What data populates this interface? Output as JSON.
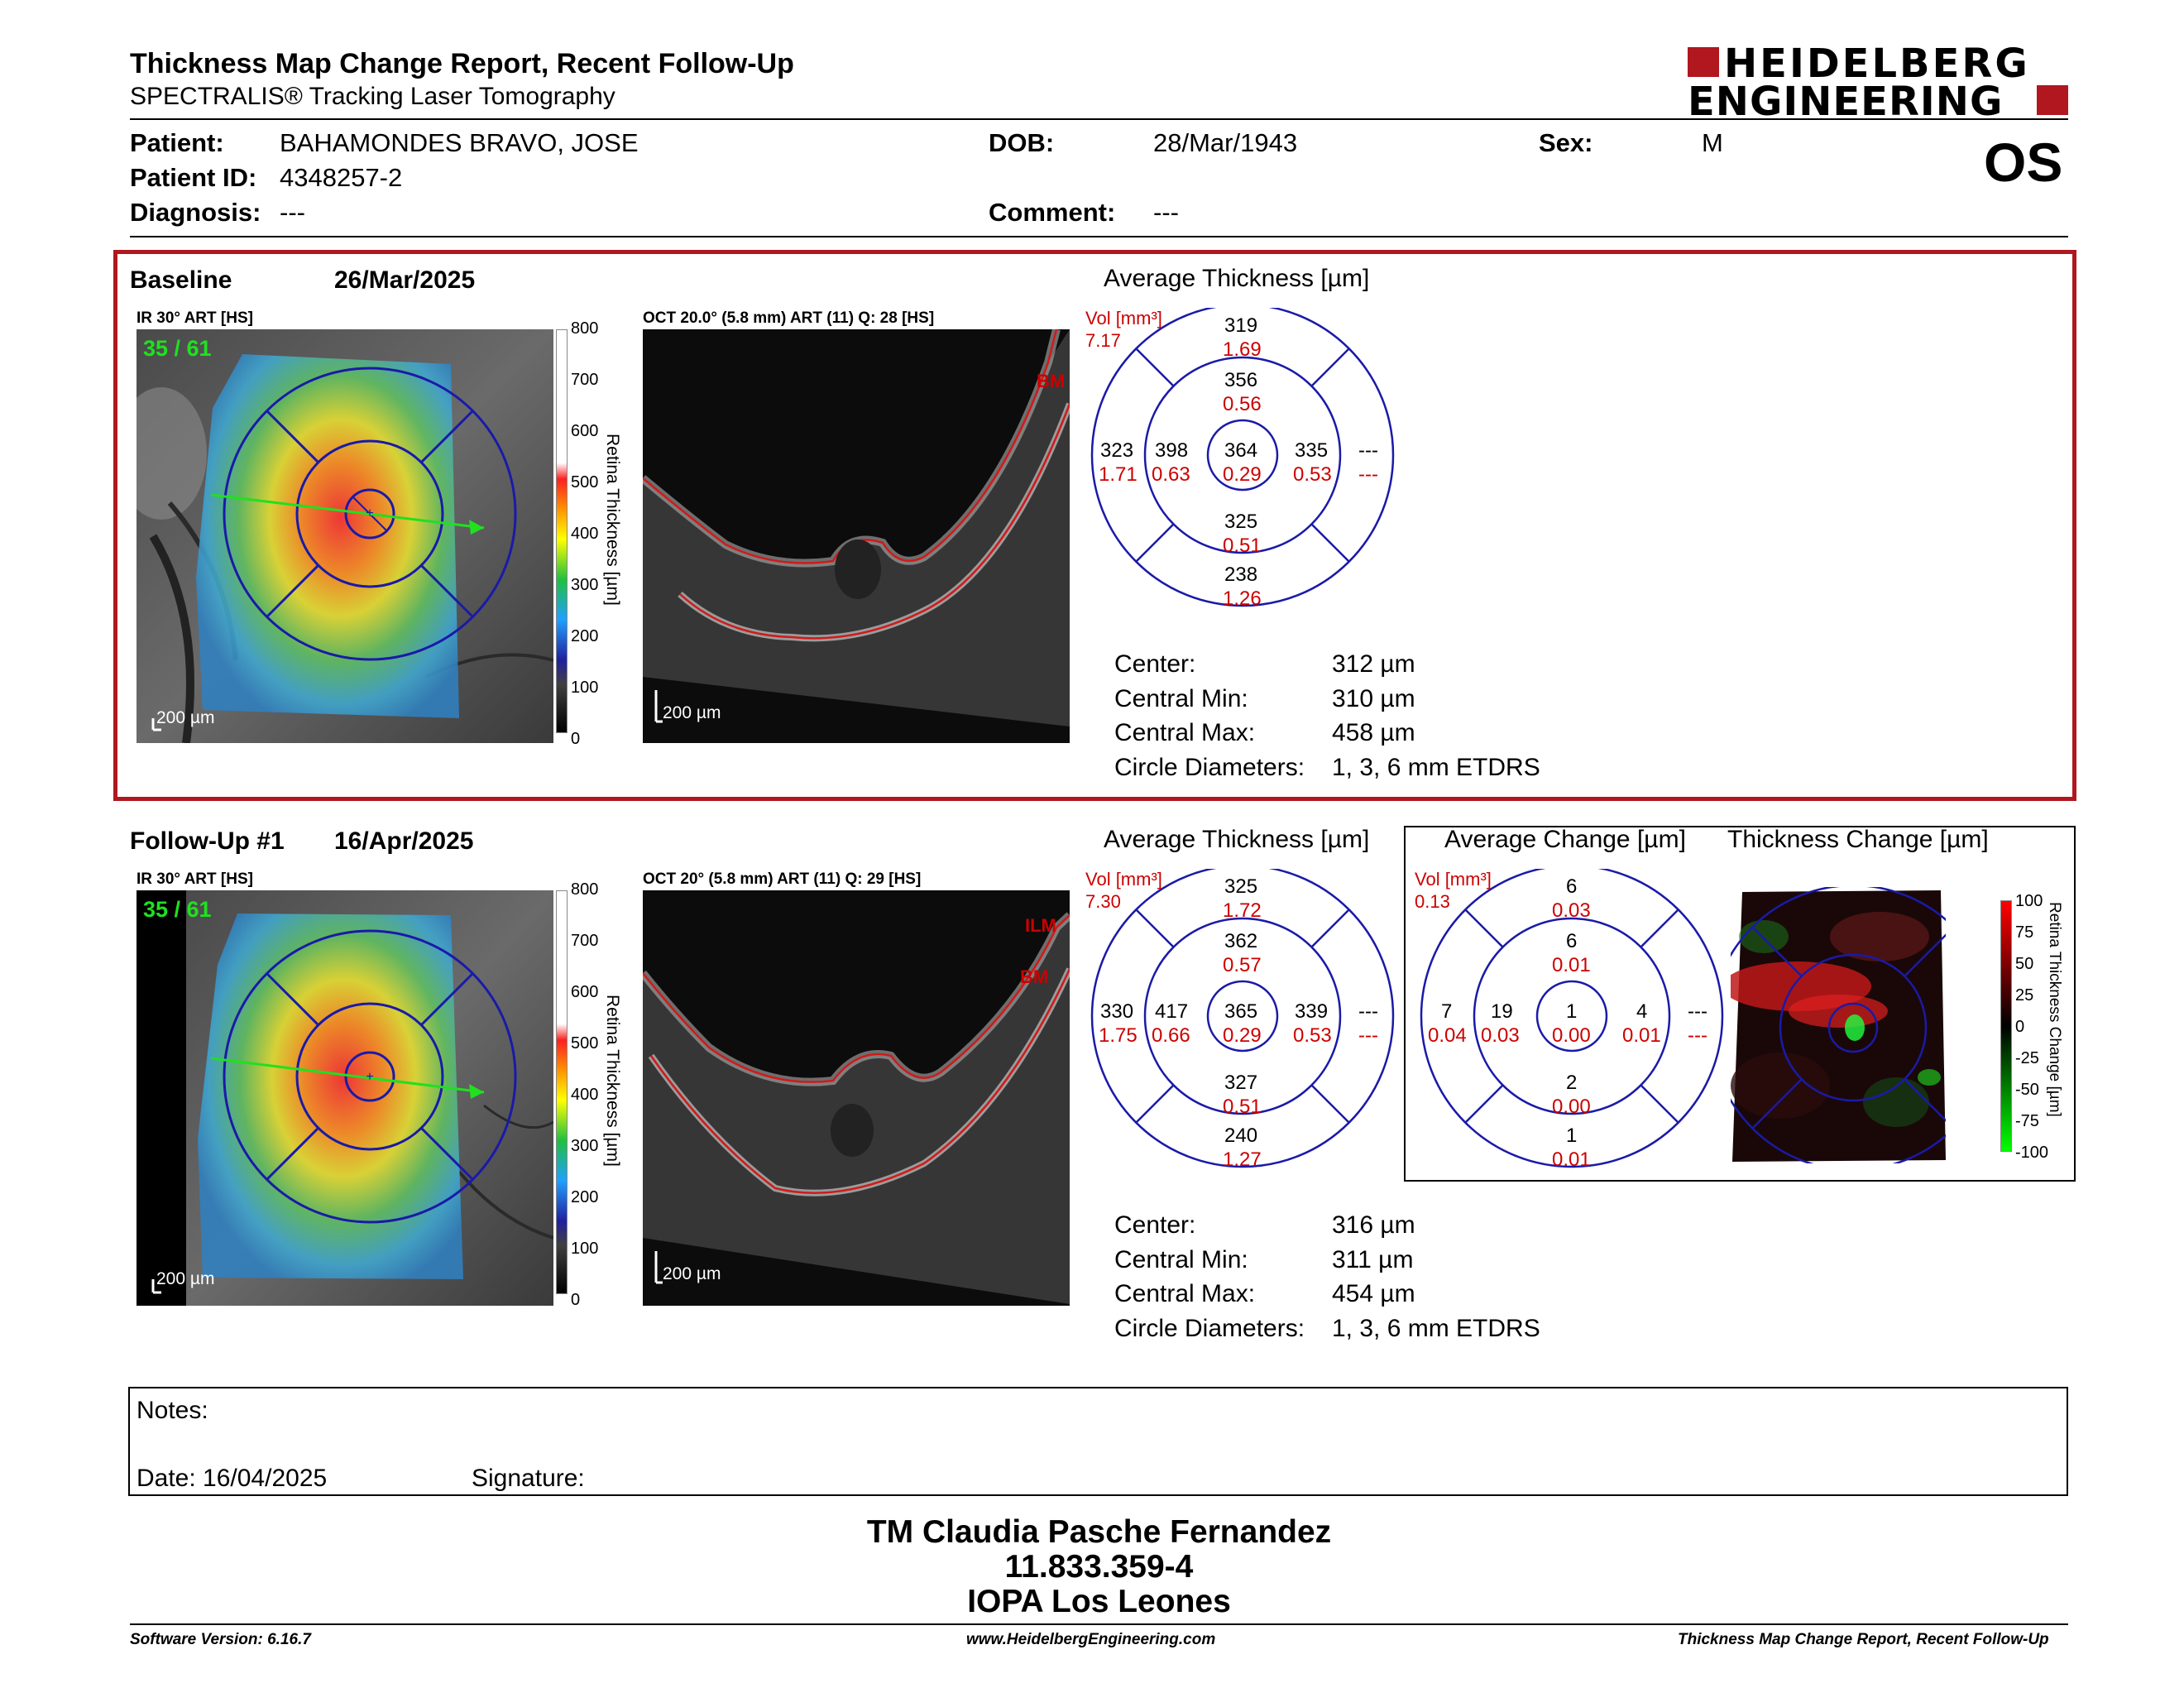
{
  "header": {
    "title": "Thickness Map Change Report, Recent Follow-Up",
    "subtitle": "SPECTRALIS® Tracking Laser Tomography",
    "logo_line1": "HEIDELBERG",
    "logo_line2": "ENGINEERING",
    "eye": "OS"
  },
  "patient": {
    "patient_label": "Patient:",
    "patient_value": "BAHAMONDES BRAVO, JOSE",
    "dob_label": "DOB:",
    "dob_value": "28/Mar/1943",
    "sex_label": "Sex:",
    "sex_value": "M",
    "id_label": "Patient ID:",
    "id_value": "4348257-2",
    "diagnosis_label": "Diagnosis:",
    "diagnosis_value": "---",
    "comment_label": "Comment:",
    "comment_value": "---"
  },
  "baseline": {
    "label": "Baseline",
    "date": "26/Mar/2025",
    "ir_label": "IR 30° ART [HS]",
    "ir_counter": "35 / 61",
    "ir_scale": "200 µm",
    "oct_label": "OCT 20.0° (5.8 mm) ART (11) Q: 28 [HS]",
    "oct_scale": "200 µm",
    "oct_tags": [
      "BM"
    ],
    "avg_title": "Average Thickness [µm]",
    "vol_label": "Vol [mm³]",
    "vol_value": "7.17",
    "sectors": {
      "outer_sup": [
        "319",
        "1.69"
      ],
      "inner_sup": [
        "356",
        "0.56"
      ],
      "outer_nas": [
        "323",
        "1.71"
      ],
      "inner_nas": [
        "398",
        "0.63"
      ],
      "center": [
        "364",
        "0.29"
      ],
      "inner_tem": [
        "335",
        "0.53"
      ],
      "outer_tem": [
        "---",
        "---"
      ],
      "inner_inf": [
        "325",
        "0.51"
      ],
      "outer_inf": [
        "238",
        "1.26"
      ]
    },
    "stats": [
      {
        "label": "Center:",
        "value": "312 µm"
      },
      {
        "label": "Central Min:",
        "value": "310 µm"
      },
      {
        "label": "Central Max:",
        "value": "458 µm"
      },
      {
        "label": "Circle Diameters:",
        "value": "1, 3, 6 mm ETDRS"
      }
    ]
  },
  "followup": {
    "label": "Follow-Up #1",
    "date": "16/Apr/2025",
    "ir_label": "IR 30° ART [HS]",
    "ir_counter": "35 / 61",
    "ir_scale": "200 µm",
    "oct_label": "OCT 20° (5.8 mm) ART (11) Q: 29 [HS]",
    "oct_scale": "200 µm",
    "oct_tags": [
      "ILM",
      "BM"
    ],
    "avg_title": "Average Thickness [µm]",
    "vol_label": "Vol [mm³]",
    "vol_value": "7.30",
    "sectors": {
      "outer_sup": [
        "325",
        "1.72"
      ],
      "inner_sup": [
        "362",
        "0.57"
      ],
      "outer_nas": [
        "330",
        "1.75"
      ],
      "inner_nas": [
        "417",
        "0.66"
      ],
      "center": [
        "365",
        "0.29"
      ],
      "inner_tem": [
        "339",
        "0.53"
      ],
      "outer_tem": [
        "---",
        "---"
      ],
      "inner_inf": [
        "327",
        "0.51"
      ],
      "outer_inf": [
        "240",
        "1.27"
      ]
    },
    "stats": [
      {
        "label": "Center:",
        "value": "316 µm"
      },
      {
        "label": "Central Min:",
        "value": "311 µm"
      },
      {
        "label": "Central Max:",
        "value": "454 µm"
      },
      {
        "label": "Circle Diameters:",
        "value": "1, 3, 6 mm ETDRS"
      }
    ]
  },
  "change": {
    "avg_title": "Average Change [µm]",
    "map_title": "Thickness Change [µm]",
    "vol_label": "Vol [mm³]",
    "vol_value": "0.13",
    "sectors": {
      "outer_sup": [
        "6",
        "0.03"
      ],
      "inner_sup": [
        "6",
        "0.01"
      ],
      "outer_nas": [
        "7",
        "0.04"
      ],
      "inner_nas": [
        "19",
        "0.03"
      ],
      "center": [
        "1",
        "0.00"
      ],
      "inner_tem": [
        "4",
        "0.01"
      ],
      "outer_tem": [
        "---",
        "---"
      ],
      "inner_inf": [
        "2",
        "0.00"
      ],
      "outer_inf": [
        "1",
        "0.01"
      ]
    },
    "cbar_ticks": [
      "100",
      "75",
      "50",
      "25",
      "0",
      "-25",
      "-50",
      "-75",
      "-100"
    ],
    "cbar_title": "Retina Thickness Change [µm]"
  },
  "thickness_cbar": {
    "ticks": [
      "800",
      "700",
      "600",
      "500",
      "400",
      "300",
      "200",
      "100",
      "0"
    ],
    "title": "Retina Thickness [µm]"
  },
  "notes": {
    "label": "Notes:",
    "date_label": "Date: 16/04/2025",
    "signature_label": "Signature:"
  },
  "signer": {
    "name": "TM Claudia Pasche Fernandez",
    "rut": "11.833.359-4",
    "institution": "IOPA Los Leones"
  },
  "footer": {
    "software": "Software Version: 6.16.7",
    "website": "www.HeidelbergEngineering.com",
    "report": "Thickness Map Change Report, Recent Follow-Up"
  },
  "colors": {
    "brand_red": "#b0171f",
    "etdrs_blue": "#1a1aa8",
    "value_red": "#cc0000"
  }
}
